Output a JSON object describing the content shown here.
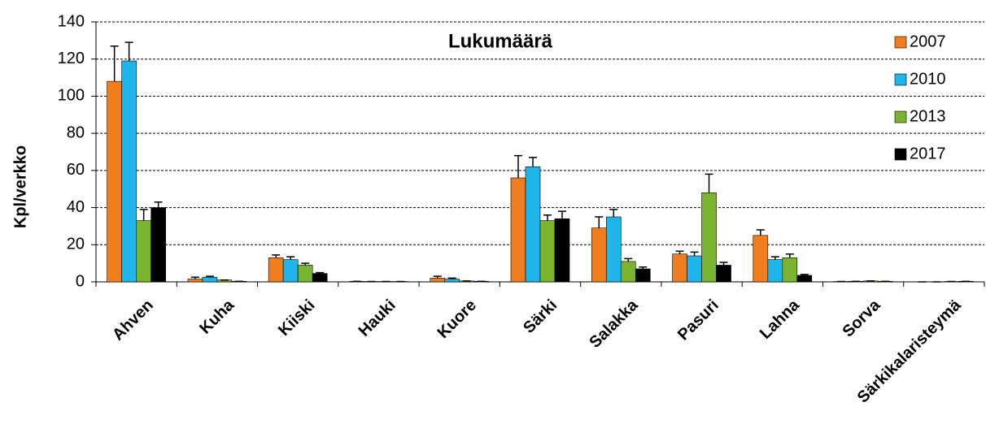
{
  "chart_data": {
    "type": "bar",
    "title": "Lukumäärä",
    "y_label": "Kpl/verkko",
    "categories": [
      "Ahven",
      "Kuha",
      "Kiiski",
      "Hauki",
      "Kuore",
      "Särki",
      "Salakka",
      "Pasuri",
      "Lahna",
      "Sorva",
      "Särkikalaristeymä"
    ],
    "series": [
      {
        "name": "2007",
        "color": "#f07d1e",
        "values": [
          108,
          1.5,
          13,
          0.3,
          2,
          56,
          29,
          15,
          25,
          0.2,
          0
        ],
        "errors": [
          19,
          1,
          1.5,
          0,
          1,
          12,
          6,
          1.5,
          3,
          0,
          0
        ]
      },
      {
        "name": "2010",
        "color": "#1fb5e8",
        "values": [
          119,
          2.5,
          12,
          0.2,
          1.5,
          62,
          35,
          14,
          12,
          0.3,
          0
        ],
        "errors": [
          10,
          0.5,
          1.5,
          0,
          0.5,
          5,
          4,
          2,
          1.5,
          0,
          0
        ]
      },
      {
        "name": "2013",
        "color": "#7ab32f",
        "values": [
          33,
          1,
          9,
          0.2,
          0.5,
          33,
          11,
          48,
          13,
          0.5,
          0.2
        ],
        "errors": [
          6,
          0,
          1,
          0,
          0,
          3,
          1.5,
          10,
          2,
          0,
          0
        ]
      },
      {
        "name": "2017",
        "color": "#000000",
        "values": [
          40,
          0.3,
          4.5,
          0.2,
          0.3,
          34,
          7,
          9,
          3.5,
          0.3,
          0.3
        ],
        "errors": [
          3,
          0,
          0.5,
          0,
          0,
          4,
          1,
          1.5,
          0.5,
          0,
          0
        ]
      }
    ],
    "ylim": [
      0,
      140
    ],
    "yticks": [
      0,
      20,
      40,
      60,
      80,
      100,
      120,
      140
    ],
    "grid": true,
    "legend": "top-right"
  }
}
